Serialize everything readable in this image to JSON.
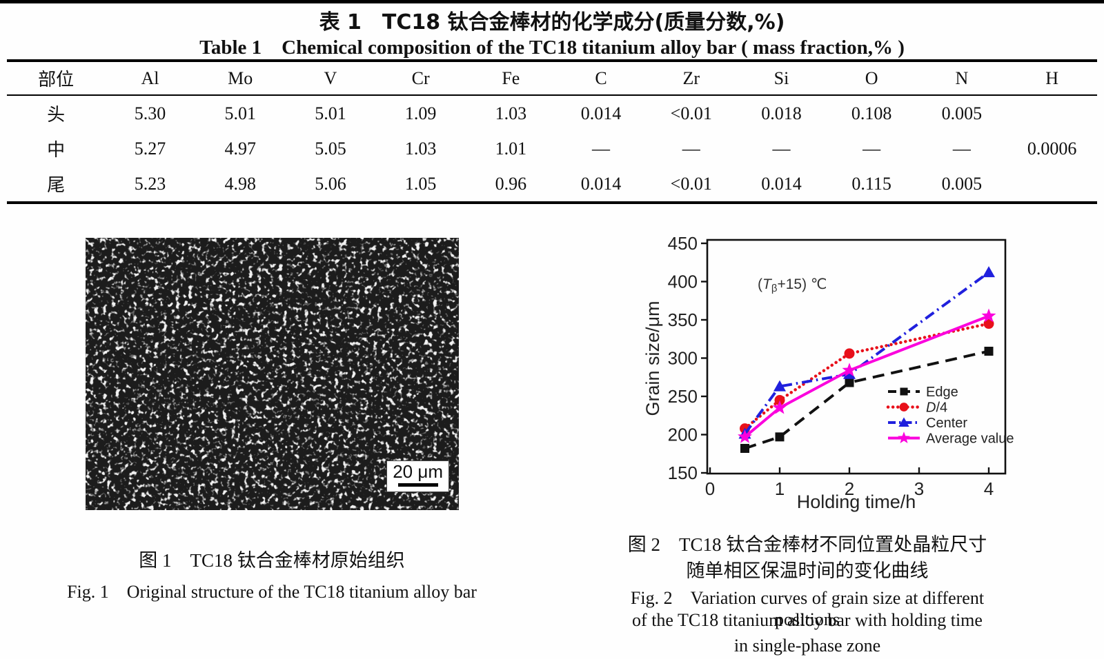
{
  "table1": {
    "title_zh": "表 1　TC18 钛合金棒材的化学成分(质量分数,%)",
    "title_en": "Table 1　Chemical composition of the TC18 titanium alloy bar ( mass fraction,% )",
    "columns": [
      "部位",
      "Al",
      "Mo",
      "V",
      "Cr",
      "Fe",
      "C",
      "Zr",
      "Si",
      "O",
      "N",
      "H"
    ],
    "rows": [
      {
        "cells": [
          "头",
          "5.30",
          "5.01",
          "5.01",
          "1.09",
          "1.03",
          "0.014",
          "<0.01",
          "0.018",
          "0.108",
          "0.005",
          ""
        ]
      },
      {
        "cells": [
          "中",
          "5.27",
          "4.97",
          "5.05",
          "1.03",
          "1.01",
          "—",
          "—",
          "—",
          "—",
          "—",
          "0.0006"
        ]
      },
      {
        "cells": [
          "尾",
          "5.23",
          "4.98",
          "5.06",
          "1.05",
          "0.96",
          "0.014",
          "<0.01",
          "0.014",
          "0.115",
          "0.005",
          ""
        ]
      }
    ]
  },
  "figure1": {
    "scale_bar_label": "20 μm",
    "caption_zh": "图 1　TC18 钛合金棒材原始组织",
    "caption_en": "Fig. 1　Original structure of the TC18 titanium alloy bar"
  },
  "figure2": {
    "caption_zh_line1": "图 2　TC18 钛合金棒材不同位置处晶粒尺寸",
    "caption_zh_line2": "随单相区保温时间的变化曲线",
    "caption_en_line1": "Fig. 2　Variation curves of grain size at different positions",
    "caption_en_line2": "of the TC18 titanium alloy bar with holding time",
    "caption_en_line3": "in single-phase zone"
  },
  "chart_data": {
    "type": "line",
    "title": "",
    "xlabel": "Holding time/h",
    "ylabel": "Grain size/μm",
    "xlim": [
      0,
      4.28
    ],
    "ylim": [
      150,
      450
    ],
    "xticks": [
      0,
      1,
      2,
      3,
      4
    ],
    "yticks": [
      150,
      200,
      250,
      300,
      350,
      400,
      450
    ],
    "grid": false,
    "legend_position": "inside lower right",
    "annotation": {
      "prefix": "(",
      "symbol": "T",
      "subscript": "β",
      "suffix": "+15) ℃"
    },
    "x": [
      0.5,
      1,
      2,
      4
    ],
    "series": [
      {
        "name": "Edge",
        "values": [
          182,
          197,
          268,
          309
        ],
        "color": "#111111",
        "line": "dashed",
        "marker": "square",
        "italic_first_char": false
      },
      {
        "name": "D/4",
        "values": [
          208,
          245,
          306,
          345
        ],
        "color": "#e8101a",
        "line": "dotted",
        "marker": "circle",
        "italic_first_char": true
      },
      {
        "name": "Center",
        "values": [
          201,
          263,
          279,
          412
        ],
        "color": "#2020dd",
        "line": "dashdot",
        "marker": "triangle",
        "italic_first_char": false
      },
      {
        "name": "Average value",
        "values": [
          197,
          235,
          284,
          355
        ],
        "color": "#fb00dd",
        "line": "solid",
        "marker": "star",
        "italic_first_char": false
      }
    ]
  }
}
